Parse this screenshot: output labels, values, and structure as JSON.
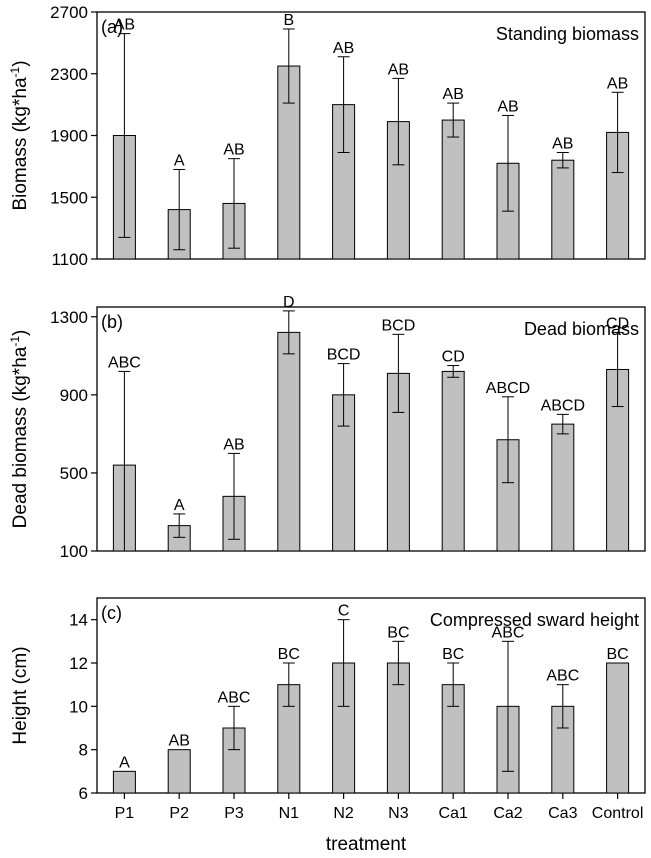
{
  "chart_data": [
    {
      "type": "bar",
      "panel_label": "(a)",
      "title": "Standing biomass",
      "ylabel": "Biomass (kg*ha",
      "ylabel_sup": "-1",
      "ylabel_close": ")",
      "ylim": [
        1100,
        2700
      ],
      "yticks": [
        1100,
        1500,
        1900,
        2300,
        2700
      ],
      "categories": [
        "P1",
        "P2",
        "P3",
        "N1",
        "N2",
        "N3",
        "Ca1",
        "Ca2",
        "Ca3",
        "Control"
      ],
      "values": [
        1900,
        1420,
        1460,
        2350,
        2100,
        1990,
        2000,
        1720,
        1740,
        1920
      ],
      "errors": [
        660,
        260,
        290,
        240,
        310,
        280,
        110,
        310,
        50,
        260
      ],
      "letters": [
        "AB",
        "A",
        "AB",
        "B",
        "AB",
        "AB",
        "AB",
        "AB",
        "AB",
        "AB"
      ]
    },
    {
      "type": "bar",
      "panel_label": "(b)",
      "title": "Dead biomass",
      "ylabel": "Dead biomass (kg*ha",
      "ylabel_sup": "-1",
      "ylabel_close": ")",
      "ylim": [
        100,
        1350
      ],
      "yticks": [
        100,
        500,
        900,
        1300
      ],
      "categories": [
        "P1",
        "P2",
        "P3",
        "N1",
        "N2",
        "N3",
        "Ca1",
        "Ca2",
        "Ca3",
        "Control"
      ],
      "values": [
        540,
        230,
        380,
        1220,
        900,
        1010,
        1020,
        670,
        750,
        1030
      ],
      "errors": [
        480,
        60,
        220,
        110,
        160,
        200,
        30,
        220,
        50,
        190
      ],
      "letters": [
        "ABC",
        "A",
        "AB",
        "D",
        "BCD",
        "BCD",
        "CD",
        "ABCD",
        "ABCD",
        "CD"
      ]
    },
    {
      "type": "bar",
      "panel_label": "(c)",
      "title": "Compressed sward height",
      "ylabel": "Height (cm)",
      "ylabel_sup": "",
      "ylabel_close": "",
      "ylim": [
        6,
        15
      ],
      "yticks": [
        6,
        8,
        10,
        12,
        14
      ],
      "categories": [
        "P1",
        "P2",
        "P3",
        "N1",
        "N2",
        "N3",
        "Ca1",
        "Ca2",
        "Ca3",
        "Control"
      ],
      "values": [
        7,
        8,
        9,
        11,
        12,
        12,
        11,
        10,
        10,
        12
      ],
      "errors": [
        0,
        0,
        1,
        1,
        2,
        1,
        1,
        3,
        1,
        0
      ],
      "letters": [
        "A",
        "AB",
        "ABC",
        "BC",
        "C",
        "BC",
        "BC",
        "ABC",
        "ABC",
        "BC"
      ]
    }
  ],
  "xlabel": "treatment",
  "colors": {
    "bar_fill": "#c0c0c0",
    "stroke": "#000000"
  }
}
